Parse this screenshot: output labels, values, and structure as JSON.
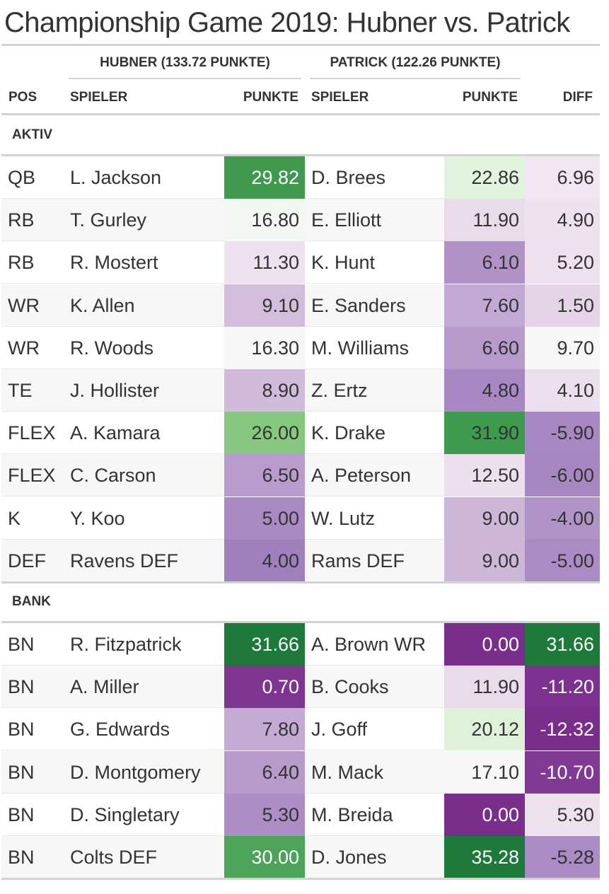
{
  "title": "Championship Game 2019: Hubner vs. Patrick",
  "spanners": {
    "team1": "HUBNER (133.72 PUNKTE)",
    "team2": "PATRICK (122.26 PUNKTE)"
  },
  "columns": {
    "pos": "POS",
    "player1": "SPIELER",
    "score1": "PUNKTE",
    "player2": "SPIELER",
    "score2": "PUNKTE",
    "diff": "DIFF"
  },
  "groups": [
    {
      "label": "AKTIV",
      "rows": [
        {
          "pos": "QB",
          "p1": "L. Jackson",
          "s1": "29.82",
          "c1": "#3f9a4e",
          "t1": "#ffffff",
          "p2": "D. Brees",
          "s2": "22.86",
          "c2": "#e2f3de",
          "t2": "#333333",
          "d": "6.96",
          "cd": "#f1e6f1",
          "td": "#333333"
        },
        {
          "pos": "RB",
          "p1": "T. Gurley",
          "s1": "16.80",
          "c1": "#f4f6f3",
          "t1": "#333333",
          "p2": "E. Elliott",
          "s2": "11.90",
          "c2": "#eadbea",
          "t2": "#333333",
          "d": "4.90",
          "cd": "#efe2ef",
          "td": "#333333"
        },
        {
          "pos": "RB",
          "p1": "R. Mostert",
          "s1": "11.30",
          "c1": "#efe1ef",
          "t1": "#333333",
          "p2": "K. Hunt",
          "s2": "6.10",
          "c2": "#b092c7",
          "t2": "#333333",
          "d": "5.20",
          "cd": "#eee0ee",
          "td": "#333333"
        },
        {
          "pos": "WR",
          "p1": "K. Allen",
          "s1": "9.10",
          "c1": "#d2bddc",
          "t1": "#333333",
          "p2": "E. Sanders",
          "s2": "7.60",
          "c2": "#c2a9d3",
          "t2": "#333333",
          "d": "1.50",
          "cd": "#e5d4e8",
          "td": "#333333"
        },
        {
          "pos": "WR",
          "p1": "R. Woods",
          "s1": "16.30",
          "c1": "#f6f6f6",
          "t1": "#333333",
          "p2": "M. Williams",
          "s2": "6.60",
          "c2": "#b59acb",
          "t2": "#333333",
          "d": "9.70",
          "cd": "#f6f6f6",
          "td": "#333333"
        },
        {
          "pos": "TE",
          "p1": "J. Hollister",
          "s1": "8.90",
          "c1": "#d0bbdb",
          "t1": "#333333",
          "p2": "Z. Ertz",
          "s2": "4.80",
          "c2": "#a887c2",
          "t2": "#333333",
          "d": "4.10",
          "cd": "#ecdeed",
          "td": "#333333"
        },
        {
          "pos": "FLEX",
          "p1": "A. Kamara",
          "s1": "26.00",
          "c1": "#86c87f",
          "t1": "#333333",
          "p2": "K. Drake",
          "s2": "31.90",
          "c2": "#3e9a4d",
          "t2": "#333333",
          "d": "-5.90",
          "cd": "#a888c2",
          "td": "#333333"
        },
        {
          "pos": "FLEX",
          "p1": "C. Carson",
          "s1": "6.50",
          "c1": "#b79ccc",
          "t1": "#333333",
          "p2": "A. Peterson",
          "s2": "12.50",
          "c2": "#ede0ee",
          "t2": "#333333",
          "d": "-6.00",
          "cd": "#a787c1",
          "td": "#333333"
        },
        {
          "pos": "K",
          "p1": "Y. Koo",
          "s1": "5.00",
          "c1": "#aa8ac3",
          "t1": "#333333",
          "p2": "W. Lutz",
          "s2": "9.00",
          "c2": "#cdb7d9",
          "t2": "#333333",
          "d": "-4.00",
          "cd": "#b194c7",
          "td": "#333333"
        },
        {
          "pos": "DEF",
          "p1": "Ravens DEF",
          "s1": "4.00",
          "c1": "#a07fbd",
          "t1": "#333333",
          "p2": "Rams DEF",
          "s2": "9.00",
          "c2": "#cdb7d9",
          "t2": "#333333",
          "d": "-5.00",
          "cd": "#ab8bc3",
          "td": "#333333"
        }
      ]
    },
    {
      "label": "BANK",
      "rows": [
        {
          "pos": "BN",
          "p1": "R. Fitzpatrick",
          "s1": "31.66",
          "c1": "#1d7a3a",
          "t1": "#ffffff",
          "p2": "A. Brown WR",
          "s2": "0.00",
          "c2": "#7a2e8c",
          "t2": "#ffffff",
          "d": "31.66",
          "cd": "#1d7a3a",
          "td": "#ffffff"
        },
        {
          "pos": "BN",
          "p1": "A. Miller",
          "s1": "0.70",
          "c1": "#7e3590",
          "t1": "#ffffff",
          "p2": "B. Cooks",
          "s2": "11.90",
          "c2": "#eadbea",
          "t2": "#333333",
          "d": "-11.20",
          "cd": "#7c3190",
          "td": "#ffffff"
        },
        {
          "pos": "BN",
          "p1": "G. Edwards",
          "s1": "7.80",
          "c1": "#c4abd4",
          "t1": "#333333",
          "p2": "J. Goff",
          "s2": "20.12",
          "c2": "#e0f1da",
          "t2": "#333333",
          "d": "-12.32",
          "cd": "#7a2e8c",
          "td": "#ffffff"
        },
        {
          "pos": "BN",
          "p1": "D. Montgomery",
          "s1": "6.40",
          "c1": "#b69bcb",
          "t1": "#333333",
          "p2": "M. Mack",
          "s2": "17.10",
          "c2": "#f7f7f7",
          "t2": "#333333",
          "d": "-10.70",
          "cd": "#813a93",
          "td": "#ffffff"
        },
        {
          "pos": "BN",
          "p1": "D. Singletary",
          "s1": "5.30",
          "c1": "#ad8dc5",
          "t1": "#333333",
          "p2": "M. Breida",
          "s2": "0.00",
          "c2": "#7a2e8c",
          "t2": "#ffffff",
          "d": "5.30",
          "cd": "#efe2ef",
          "td": "#333333"
        },
        {
          "pos": "BN",
          "p1": "Colts DEF",
          "s1": "30.00",
          "c1": "#4ba459",
          "t1": "#ffffff",
          "p2": "D. Jones",
          "s2": "35.28",
          "c2": "#1d7a3a",
          "t2": "#ffffff",
          "d": "-5.28",
          "cd": "#ab8bc3",
          "td": "#333333"
        }
      ]
    }
  ]
}
